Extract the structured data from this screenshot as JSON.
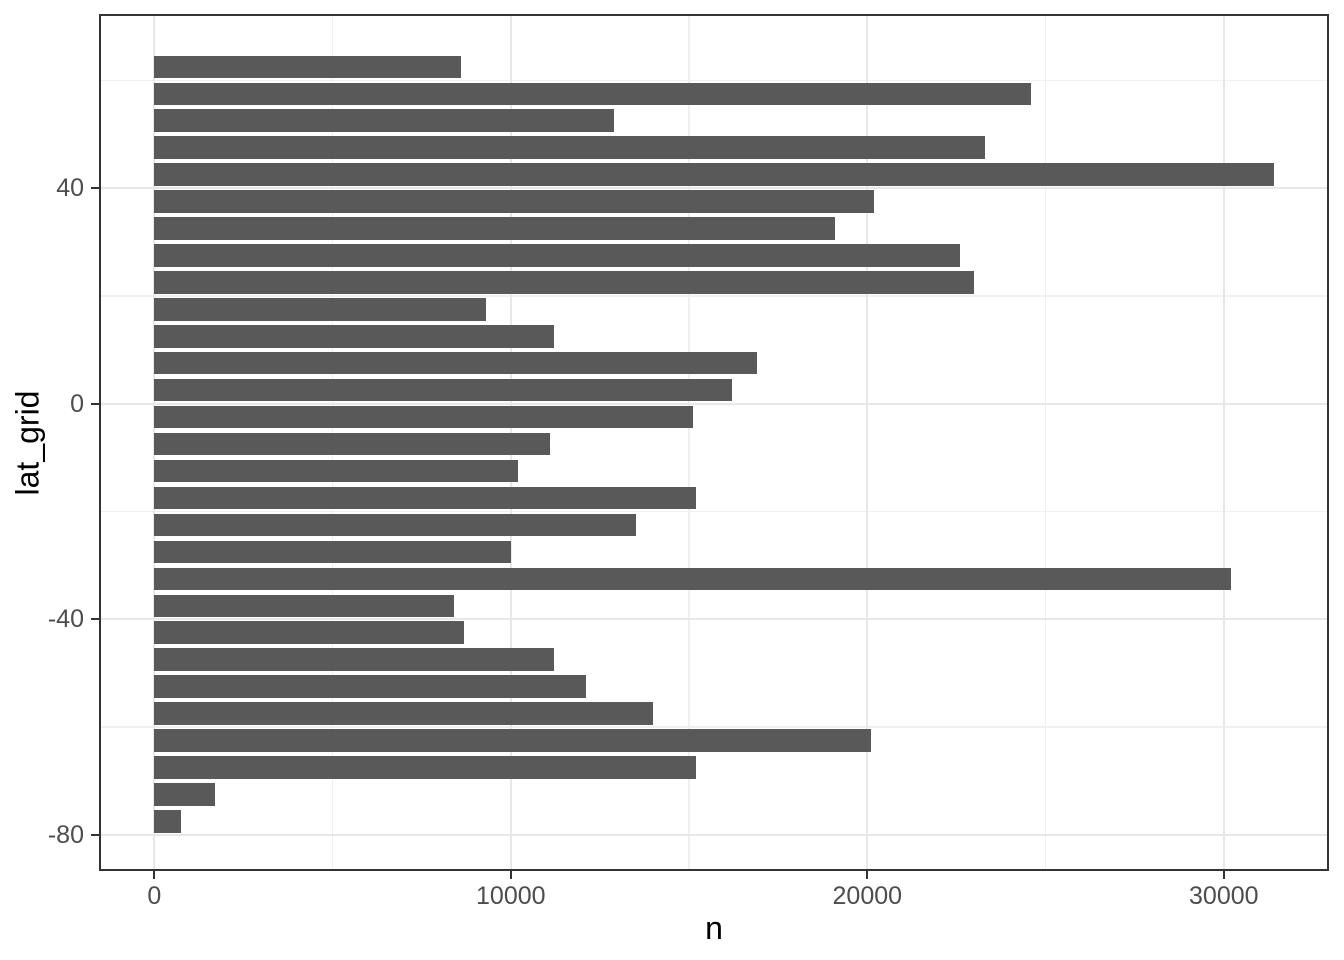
{
  "figure": {
    "title": ""
  },
  "chart_data": {
    "type": "bar",
    "orientation": "horizontal",
    "title": "",
    "xlabel": "n",
    "ylabel": "lat_grid",
    "categories": [
      62.5,
      57.5,
      52.5,
      47.5,
      42.5,
      37.5,
      32.5,
      27.5,
      22.5,
      17.5,
      12.5,
      7.5,
      2.5,
      -2.5,
      -7.5,
      -12.5,
      -17.5,
      -22.5,
      -27.5,
      -32.5,
      -37.5,
      -42.5,
      -47.5,
      -52.5,
      -57.5,
      -62.5,
      -67.5,
      -72.5,
      -77.5
    ],
    "values": [
      8600,
      24600,
      12900,
      23300,
      31400,
      20200,
      19100,
      22600,
      23000,
      9300,
      11200,
      16900,
      16200,
      15100,
      11100,
      10200,
      15200,
      13500,
      10000,
      30200,
      8400,
      8700,
      11200,
      12100,
      14000,
      20100,
      15200,
      1700,
      750
    ],
    "xlim": [
      -1550,
      32950
    ],
    "ylim": [
      -86.7,
      72.3
    ],
    "x_major_ticks": [
      0,
      10000,
      20000,
      30000
    ],
    "x_minor_ticks": [
      5000,
      15000,
      25000
    ],
    "y_major_ticks": [
      40,
      0,
      -40,
      -80
    ],
    "y_minor_ticks": [
      60,
      20,
      -20,
      -60
    ],
    "x_tick_labels": [
      "0",
      "10000",
      "20000",
      "30000"
    ],
    "y_tick_labels": [
      "40",
      "0",
      "-40",
      "-80"
    ],
    "bar_step": 5,
    "bar_width_fraction": 0.84,
    "grid": true,
    "legend": false,
    "colors": {
      "bar_fill": "#595959",
      "grid_major": "#e8e8e8",
      "grid_minor": "#f0f0f0",
      "panel_border": "#333333",
      "tick_mark": "#333333",
      "tick_label": "#4d4d4d",
      "axis_title": "#000000",
      "panel_background": "#ffffff"
    }
  }
}
